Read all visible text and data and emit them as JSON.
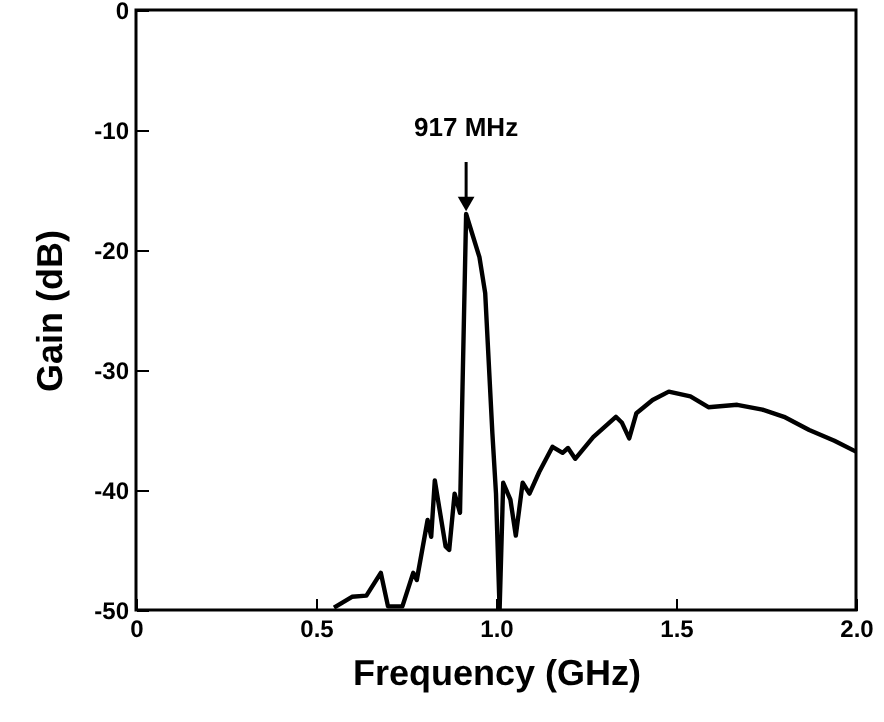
{
  "chart_data": {
    "type": "line",
    "xlabel": "Frequency (GHz)",
    "ylabel": "Gain (dB)",
    "xlim": [
      0,
      2
    ],
    "xticks": [
      0,
      0.5,
      {
        "value": 1,
        "label": "1.0"
      },
      1.5,
      {
        "value": 2,
        "label": "2.0"
      }
    ],
    "ylim": [
      -50,
      0
    ],
    "yticks": [
      -50,
      -40,
      -30,
      -20,
      -10,
      0
    ],
    "grid": false,
    "marker": "none",
    "line_style": "solid",
    "annotations": [
      {
        "text": "917 MHz",
        "x": 0.917,
        "y": -17
      }
    ],
    "x": [
      0.55,
      0.6,
      0.64,
      0.68,
      0.7,
      0.74,
      0.77,
      0.78,
      0.81,
      0.82,
      0.83,
      0.86,
      0.87,
      0.885,
      0.9,
      0.907,
      0.917,
      0.954,
      0.97,
      0.99,
      1.0,
      1.01,
      1.02,
      1.04,
      1.055,
      1.074,
      1.093,
      1.12,
      1.157,
      1.185,
      1.2,
      1.22,
      1.27,
      1.333,
      1.35,
      1.37,
      1.39,
      1.435,
      1.48,
      1.54,
      1.59,
      1.67,
      1.74,
      1.8,
      1.87,
      1.94,
      2.0
    ],
    "series": [
      {
        "color": "#000000",
        "values": [
          -49.8,
          -48.9,
          -48.8,
          -46.9,
          -49.7,
          -49.7,
          -46.9,
          -47.5,
          -42.5,
          -43.9,
          -39.2,
          -44.7,
          -45,
          -40.3,
          -41.9,
          -31.4,
          -17,
          -20.6,
          -23.6,
          -35.3,
          -40.3,
          -50,
          -39.4,
          -40.8,
          -43.8,
          -39.4,
          -40.3,
          -38.5,
          -36.4,
          -36.9,
          -36.5,
          -37.4,
          -35.6,
          -33.9,
          -34.4,
          -35.7,
          -33.6,
          -32.5,
          -31.8,
          -32.2,
          -33.1,
          -32.9,
          -33.3,
          -33.9,
          -35,
          -35.9,
          -36.8
        ]
      }
    ]
  }
}
